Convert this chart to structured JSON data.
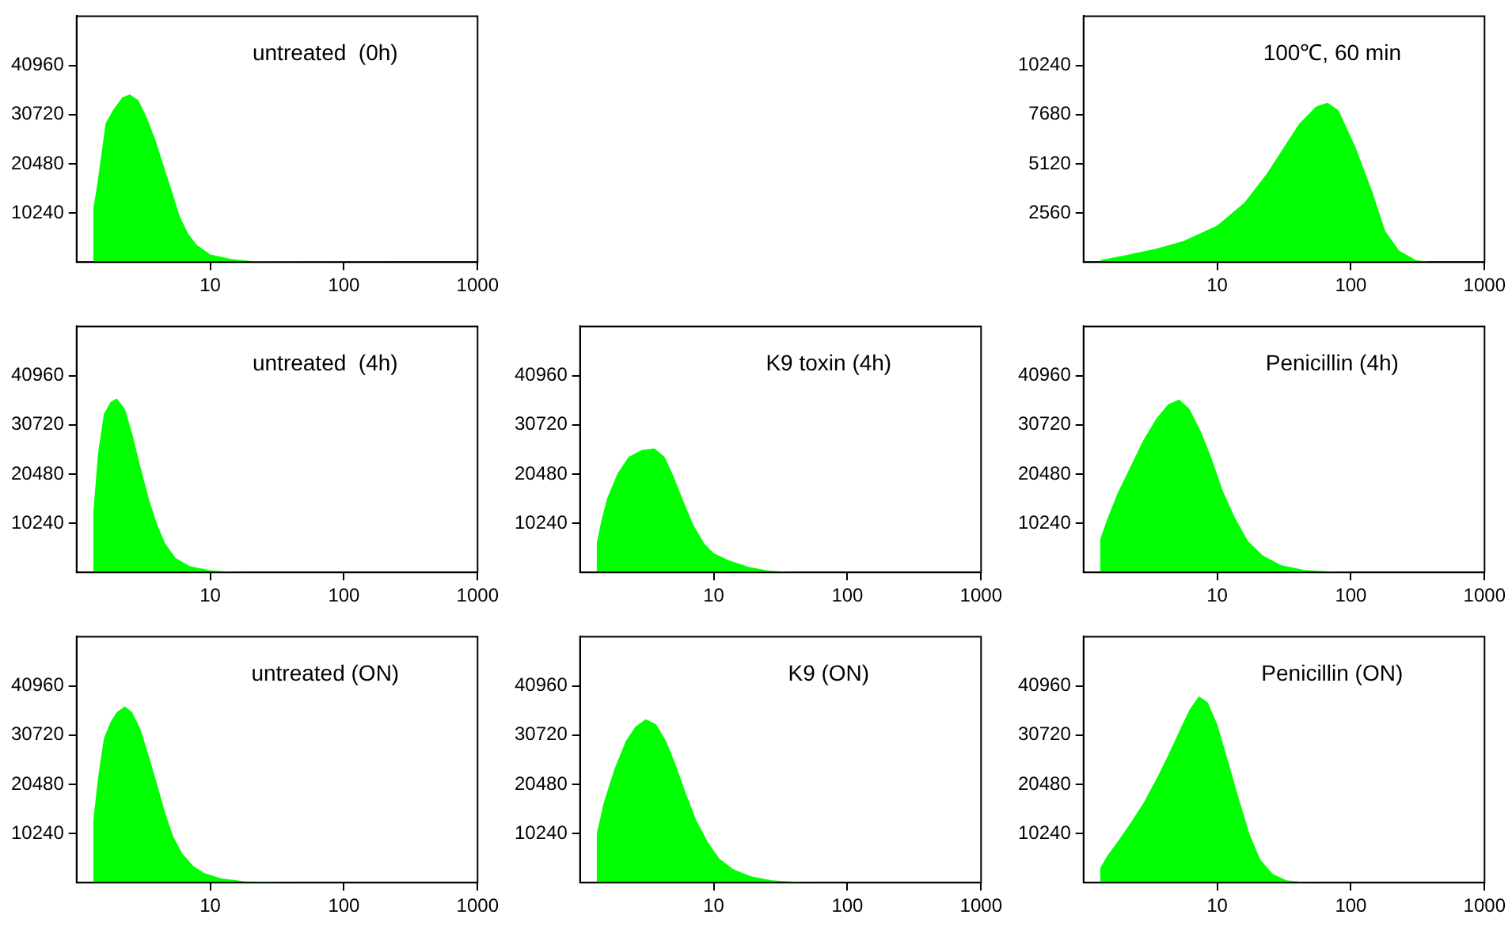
{
  "chart_data": [
    {
      "type": "area",
      "title": "untreated  (0h)",
      "log": "x",
      "color": "#00ff00",
      "xlim": [
        1,
        1000
      ],
      "xticks": [
        10,
        100,
        1000
      ],
      "ylim": [
        0,
        51200
      ],
      "yticks": [
        10240,
        20480,
        30720,
        40960
      ],
      "x": [
        1.33,
        1.43,
        1.65,
        1.9,
        2.2,
        2.5,
        2.9,
        3.35,
        3.9,
        4.5,
        5.2,
        5.9,
        6.8,
        7.9,
        10,
        14.6,
        21,
        55,
        1000
      ],
      "values": [
        10800,
        16300,
        28900,
        31900,
        34300,
        34900,
        33700,
        30100,
        25300,
        19900,
        14500,
        9600,
        6000,
        3600,
        1600,
        600,
        200,
        100,
        0
      ]
    },
    {
      "type": "area",
      "title": "100℃, 60 min",
      "log": "x",
      "color": "#00ff00",
      "xlim": [
        1,
        1000
      ],
      "xticks": [
        10,
        100,
        1000
      ],
      "ylim": [
        0,
        12800
      ],
      "yticks": [
        2560,
        5120,
        7680,
        10240
      ],
      "x": [
        1.33,
        2.2,
        3.5,
        5.6,
        10,
        16,
        23.5,
        31,
        41,
        55,
        67,
        81,
        108,
        144,
        181,
        230,
        307,
        400,
        1000
      ],
      "values": [
        100,
        400,
        700,
        1100,
        1900,
        3100,
        4600,
        5900,
        7200,
        8100,
        8300,
        7900,
        6000,
        3700,
        1600,
        600,
        100,
        0,
        0
      ]
    },
    {
      "type": "area",
      "title": "untreated  (4h)",
      "log": "x",
      "color": "#00ff00",
      "xlim": [
        1,
        1000
      ],
      "xticks": [
        10,
        100,
        1000
      ],
      "ylim": [
        0,
        51200
      ],
      "yticks": [
        10240,
        20480,
        30720,
        40960
      ],
      "x": [
        1.33,
        1.45,
        1.6,
        1.8,
        2.0,
        2.3,
        2.6,
        3.0,
        3.5,
        4.0,
        4.6,
        5.5,
        7,
        10,
        15,
        30,
        1000
      ],
      "values": [
        12000,
        25000,
        33000,
        35500,
        36200,
        34000,
        29000,
        22000,
        15000,
        10000,
        6000,
        3000,
        1300,
        400,
        100,
        0,
        0
      ]
    },
    {
      "type": "area",
      "title": "K9 toxin (4h)",
      "log": "x",
      "color": "#00ff00",
      "xlim": [
        1,
        1000
      ],
      "xticks": [
        10,
        100,
        1000
      ],
      "ylim": [
        0,
        51200
      ],
      "yticks": [
        10240,
        20480,
        30720,
        40960
      ],
      "x": [
        1.33,
        1.45,
        1.6,
        1.9,
        2.3,
        2.9,
        3.6,
        4.3,
        5.0,
        5.9,
        7.0,
        8.5,
        10,
        13,
        18,
        25,
        35,
        60,
        1000
      ],
      "values": [
        6000,
        11000,
        15500,
        20500,
        24000,
        25500,
        25800,
        24000,
        20000,
        15000,
        10000,
        6000,
        4000,
        2500,
        1200,
        400,
        100,
        0,
        0
      ]
    },
    {
      "type": "area",
      "title": "Penicillin (4h)",
      "log": "x",
      "color": "#00ff00",
      "xlim": [
        1,
        1000
      ],
      "xticks": [
        10,
        100,
        1000
      ],
      "ylim": [
        0,
        51200
      ],
      "yticks": [
        10240,
        20480,
        30720,
        40960
      ],
      "x": [
        1.33,
        1.5,
        1.8,
        2.2,
        2.8,
        3.5,
        4.3,
        5.2,
        6.2,
        7.5,
        9,
        11,
        13.5,
        17,
        22,
        30,
        45,
        80,
        150,
        1000
      ],
      "values": [
        6800,
        11000,
        16500,
        21500,
        27500,
        32000,
        35000,
        36000,
        34000,
        29500,
        24000,
        17000,
        11500,
        6500,
        3500,
        1500,
        500,
        100,
        0,
        0
      ]
    },
    {
      "type": "area",
      "title": "untreated (ON)",
      "log": "x",
      "color": "#00ff00",
      "xlim": [
        1,
        1000
      ],
      "xticks": [
        10,
        100,
        1000
      ],
      "ylim": [
        0,
        51200
      ],
      "yticks": [
        10240,
        20480,
        30720,
        40960
      ],
      "x": [
        1.33,
        1.45,
        1.6,
        1.8,
        2.0,
        2.3,
        2.6,
        3.0,
        3.5,
        4.0,
        4.6,
        5.3,
        6.2,
        7.5,
        9,
        12,
        18,
        30,
        60,
        1000
      ],
      "values": [
        12600,
        22000,
        30000,
        33500,
        35500,
        36700,
        35500,
        32000,
        26000,
        20500,
        14500,
        9500,
        6000,
        3400,
        2000,
        900,
        300,
        100,
        0,
        0
      ]
    },
    {
      "type": "area",
      "title": "K9 (ON)",
      "log": "x",
      "color": "#00ff00",
      "xlim": [
        1,
        1000
      ],
      "xticks": [
        10,
        100,
        1000
      ],
      "ylim": [
        0,
        51200
      ],
      "yticks": [
        10240,
        20480,
        30720,
        40960
      ],
      "x": [
        1.33,
        1.5,
        1.8,
        2.2,
        2.6,
        3.1,
        3.7,
        4.4,
        5.2,
        6.2,
        7.4,
        9,
        11,
        14,
        19,
        27,
        45,
        80,
        1000
      ],
      "values": [
        10000,
        16500,
        23500,
        29500,
        32500,
        34000,
        33000,
        29500,
        24500,
        18500,
        13000,
        8500,
        5000,
        2800,
        1300,
        500,
        100,
        0,
        0
      ]
    },
    {
      "type": "area",
      "title": "Penicillin (ON)",
      "log": "x",
      "color": "#00ff00",
      "xlim": [
        1,
        1000
      ],
      "xticks": [
        10,
        100,
        1000
      ],
      "ylim": [
        0,
        51200
      ],
      "yticks": [
        10240,
        20480,
        30720,
        40960
      ],
      "x": [
        1.33,
        1.5,
        1.8,
        2.2,
        2.8,
        3.5,
        4.3,
        5.2,
        6.2,
        7.3,
        8.5,
        10,
        12,
        14.5,
        17.5,
        21,
        26,
        33,
        45,
        80,
        1000
      ],
      "values": [
        3000,
        5500,
        8500,
        12000,
        16500,
        21500,
        26500,
        31500,
        36000,
        38800,
        37500,
        33000,
        25500,
        17500,
        10000,
        4800,
        1800,
        500,
        100,
        0,
        0
      ]
    }
  ]
}
